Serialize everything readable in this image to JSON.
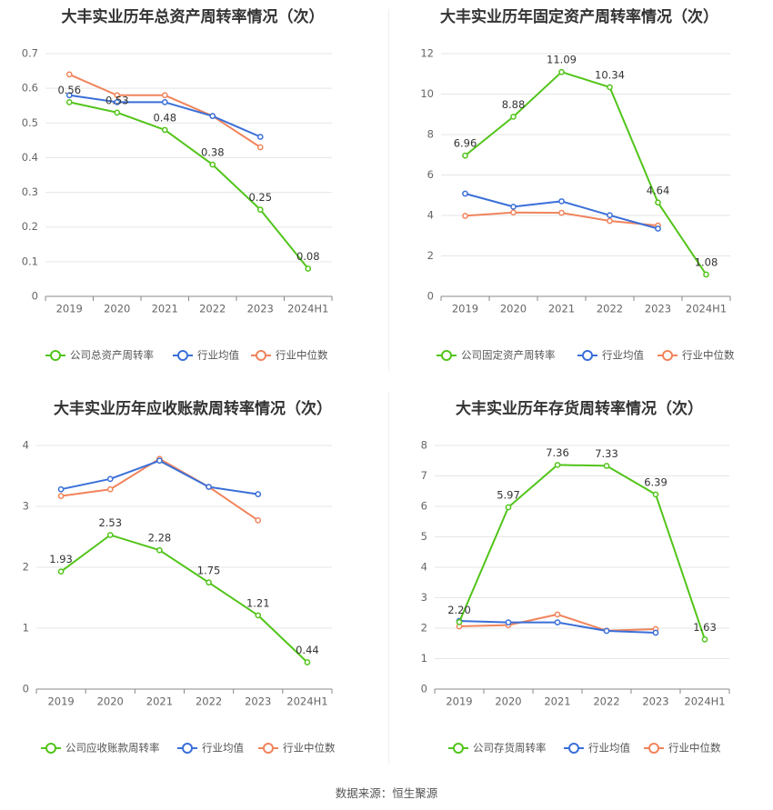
{
  "colors": {
    "company": "#52c41a",
    "avg": "#3a6fd8",
    "median": "#f0845c",
    "grid": "#e6e6e6",
    "axis": "#888888"
  },
  "source_note": "数据来源：恒生聚源",
  "chart_data": [
    {
      "type": "line",
      "title": "大丰实业历年总资产周转率情况（次）",
      "categories": [
        "2019",
        "2020",
        "2021",
        "2022",
        "2023",
        "2024H1"
      ],
      "ylim": [
        0,
        0.7
      ],
      "yticks": [
        0,
        0.1,
        0.2,
        0.3,
        0.4,
        0.5,
        0.6,
        0.7
      ],
      "ytick_labels": [
        "0",
        "0.1",
        "0.2",
        "0.3",
        "0.4",
        "0.5",
        "0.6",
        "0.7"
      ],
      "series": [
        {
          "name": "公司总资产周转率",
          "role": "company",
          "values": [
            0.56,
            0.53,
            0.48,
            0.38,
            0.25,
            0.08
          ],
          "labels": [
            "0.56",
            "0.53",
            "0.48",
            "0.38",
            "0.25",
            "0.08"
          ]
        },
        {
          "name": "行业均值",
          "role": "avg",
          "values": [
            0.58,
            0.56,
            0.56,
            0.52,
            0.46,
            null
          ]
        },
        {
          "name": "行业中位数",
          "role": "median",
          "values": [
            0.64,
            0.58,
            0.58,
            0.52,
            0.43,
            null
          ]
        }
      ]
    },
    {
      "type": "line",
      "title": "大丰实业历年固定资产周转率情况（次）",
      "categories": [
        "2019",
        "2020",
        "2021",
        "2022",
        "2023",
        "2024H1"
      ],
      "ylim": [
        0,
        12
      ],
      "yticks": [
        0,
        2,
        4,
        6,
        8,
        10,
        12
      ],
      "ytick_labels": [
        "0",
        "2",
        "4",
        "6",
        "8",
        "10",
        "12"
      ],
      "series": [
        {
          "name": "公司固定资产周转率",
          "role": "company",
          "values": [
            6.96,
            8.88,
            11.09,
            10.34,
            4.64,
            1.08
          ],
          "labels": [
            "6.96",
            "8.88",
            "11.09",
            "10.34",
            "4.64",
            "1.08"
          ]
        },
        {
          "name": "行业均值",
          "role": "avg",
          "values": [
            5.08,
            4.43,
            4.7,
            4.01,
            3.35,
            null
          ]
        },
        {
          "name": "行业中位数",
          "role": "median",
          "values": [
            3.98,
            4.15,
            4.13,
            3.73,
            3.5,
            null
          ]
        }
      ]
    },
    {
      "type": "line",
      "title": "大丰实业历年应收账款周转率情况（次）",
      "categories": [
        "2019",
        "2020",
        "2021",
        "2022",
        "2023",
        "2024H1"
      ],
      "ylim": [
        0,
        4
      ],
      "yticks": [
        0,
        1,
        2,
        3,
        4
      ],
      "ytick_labels": [
        "0",
        "1",
        "2",
        "3",
        "4"
      ],
      "series": [
        {
          "name": "公司应收账款周转率",
          "role": "company",
          "values": [
            1.93,
            2.53,
            2.28,
            1.75,
            1.21,
            0.44
          ],
          "labels": [
            "1.93",
            "2.53",
            "2.28",
            "1.75",
            "1.21",
            "0.44"
          ]
        },
        {
          "name": "行业均值",
          "role": "avg",
          "values": [
            3.28,
            3.45,
            3.75,
            3.32,
            3.2,
            null
          ]
        },
        {
          "name": "行业中位数",
          "role": "median",
          "values": [
            3.17,
            3.28,
            3.78,
            3.32,
            2.77,
            null
          ]
        }
      ]
    },
    {
      "type": "line",
      "title": "大丰实业历年存货周转率情况（次）",
      "categories": [
        "2019",
        "2020",
        "2021",
        "2022",
        "2023",
        "2024H1"
      ],
      "ylim": [
        0,
        8
      ],
      "yticks": [
        0,
        1,
        2,
        3,
        4,
        5,
        6,
        7,
        8
      ],
      "ytick_labels": [
        "0",
        "1",
        "2",
        "3",
        "4",
        "5",
        "6",
        "7",
        "8"
      ],
      "series": [
        {
          "name": "公司存货周转率",
          "role": "company",
          "values": [
            2.2,
            5.97,
            7.36,
            7.33,
            6.39,
            1.63
          ],
          "labels": [
            "2.20",
            "5.97",
            "7.36",
            "7.33",
            "6.39",
            "1.63"
          ]
        },
        {
          "name": "行业均值",
          "role": "avg",
          "values": [
            2.24,
            2.19,
            2.19,
            1.91,
            1.85,
            null
          ]
        },
        {
          "name": "行业中位数",
          "role": "median",
          "values": [
            2.06,
            2.1,
            2.45,
            1.92,
            1.97,
            null
          ]
        }
      ]
    }
  ]
}
